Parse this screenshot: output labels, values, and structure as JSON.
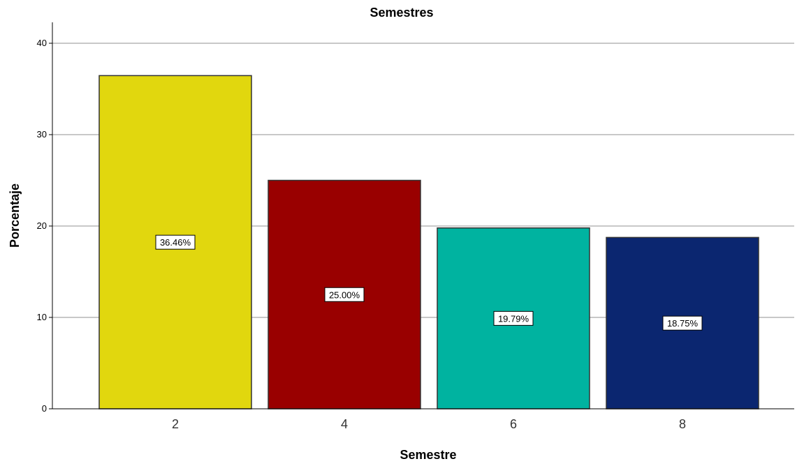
{
  "chart_data": {
    "type": "bar",
    "title": "Semestres",
    "xlabel": "Semestre",
    "ylabel": "Porcentaje",
    "categories": [
      "2",
      "4",
      "6",
      "8"
    ],
    "values": [
      36.46,
      25.0,
      19.79,
      18.75
    ],
    "data_labels": [
      "36.46%",
      "25.00%",
      "19.79%",
      "18.75%"
    ],
    "colors": [
      "#e1d70e",
      "#990000",
      "#00b3a0",
      "#0b2670"
    ],
    "ylim": [
      0,
      40
    ],
    "yticks": [
      0,
      10,
      20,
      30,
      40
    ],
    "ytick_labels": [
      "0",
      "10",
      "20",
      "30",
      "40"
    ],
    "grid": true,
    "legend": "none"
  }
}
